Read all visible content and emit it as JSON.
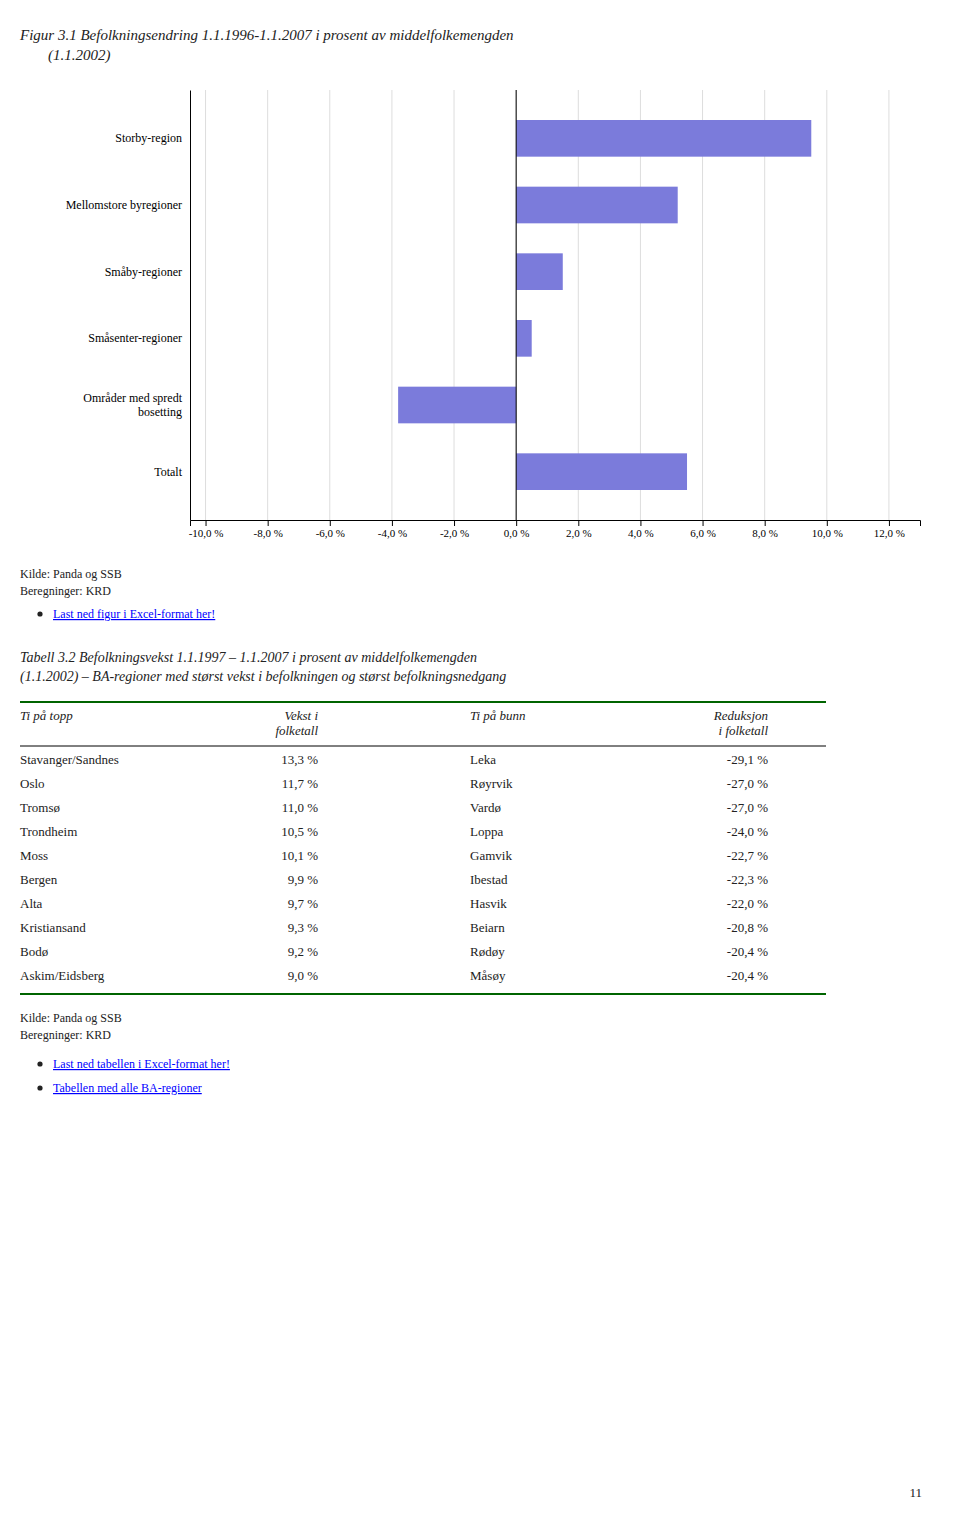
{
  "chart_data": {
    "type": "bar",
    "orientation": "horizontal",
    "title": "Figur 3.1 Befolkningsendring 1.1.1996-1.1.2007 i prosent av middelfolkemengden",
    "subtitle": "(1.1.2002)",
    "categories": [
      "Totalt",
      "Områder med spredt\nbosetting",
      "Småsenter-regioner",
      "Småby-regioner",
      "Mellomstore byregioner",
      "Storby-region"
    ],
    "values": [
      5.5,
      -3.8,
      0.5,
      1.5,
      5.2,
      9.5
    ],
    "color": "#7b7bdb",
    "xlim": [
      -10.5,
      13.0
    ],
    "xticks": [
      {
        "value": -10.0,
        "label": "-10,0 %"
      },
      {
        "value": -8.0,
        "label": "-8,0 %"
      },
      {
        "value": -6.0,
        "label": "-6,0 %"
      },
      {
        "value": -4.0,
        "label": "-4,0 %"
      },
      {
        "value": -2.0,
        "label": "-2,0 %"
      },
      {
        "value": 0.0,
        "label": "0,0 %"
      },
      {
        "value": 2.0,
        "label": "2,0 %"
      },
      {
        "value": 4.0,
        "label": "4,0 %"
      },
      {
        "value": 6.0,
        "label": "6,0 %"
      },
      {
        "value": 8.0,
        "label": "8,0 %"
      },
      {
        "value": 10.0,
        "label": "10,0 %"
      },
      {
        "value": 12.0,
        "label": "12,0 %"
      }
    ],
    "grid": true
  },
  "source": [
    "Kilde: Panda og SSB",
    "Beregninger: KRD"
  ],
  "links": [
    "Last ned figur i Excel-format her!"
  ],
  "table": {
    "title": [
      "Tabell 3.2 Befolkningsvekst 1.1.1997 – 1.1.2007 i prosent av middelfolkemengden",
      "(1.1.2002) – BA-regioner med størst vekst i befolkningen og størst befolkningsnedgang"
    ],
    "headers": [
      "Ti på topp",
      "Vekst i\nfolketall",
      "Ti på bunn",
      "Reduksjon\ni folketall"
    ],
    "rows": [
      [
        "Stavanger/Sandnes",
        "13,3 %",
        "Leka",
        "-29,1 %"
      ],
      [
        "Oslo",
        "11,7 %",
        "Røyrvik",
        "-27,0 %"
      ],
      [
        "Tromsø",
        "11,0 %",
        "Vardø",
        "-27,0 %"
      ],
      [
        "Trondheim",
        "10,5 %",
        "Loppa",
        "-24,0 %"
      ],
      [
        "Moss",
        "10,1 %",
        "Gamvik",
        "-22,7 %"
      ],
      [
        "Bergen",
        "9,9 %",
        "Ibestad",
        "-22,3 %"
      ],
      [
        "Alta",
        "9,7 %",
        "Hasvik",
        "-22,0 %"
      ],
      [
        "Kristiansand",
        "9,3 %",
        "Beiarn",
        "-20,8 %"
      ],
      [
        "Bodø",
        "9,2 %",
        "Rødøy",
        "-20,4 %"
      ],
      [
        "Askim/Eidsberg",
        "9,0 %",
        "Måsøy",
        "-20,4 %"
      ]
    ],
    "source": [
      "Kilde: Panda og SSB",
      "Beregninger: KRD"
    ],
    "links": [
      "Last ned tabellen i Excel-format her!",
      "Tabellen med alle BA-regioner"
    ]
  },
  "page_number": "11"
}
